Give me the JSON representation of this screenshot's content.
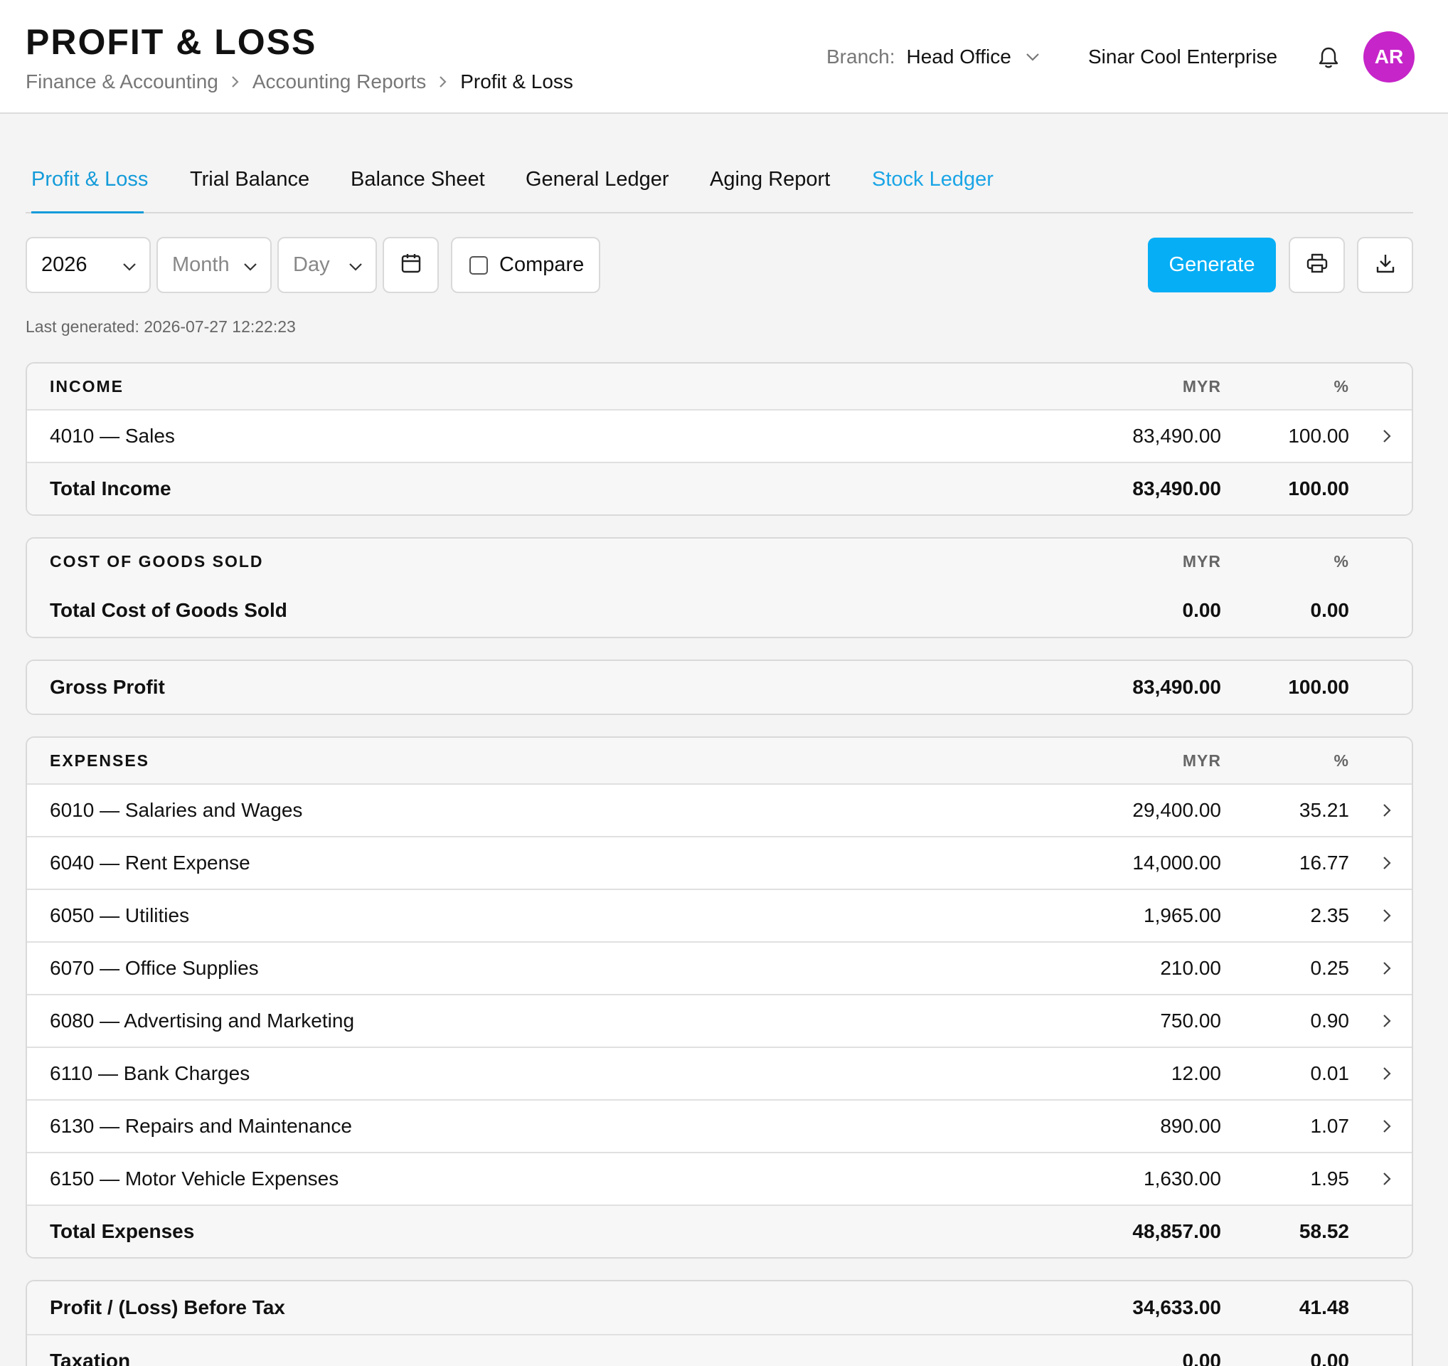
{
  "header": {
    "title": "PROFIT & LOSS",
    "breadcrumb": [
      "Finance & Accounting",
      "Accounting Reports",
      "Profit & Loss"
    ],
    "branch_label": "Branch:",
    "branch_value": "Head Office",
    "company": "Sinar Cool Enterprise",
    "avatar_initials": "AR"
  },
  "tabs": [
    {
      "label": "Profit & Loss",
      "state": "active"
    },
    {
      "label": "Trial Balance",
      "state": "normal"
    },
    {
      "label": "Balance Sheet",
      "state": "normal"
    },
    {
      "label": "General Ledger",
      "state": "normal"
    },
    {
      "label": "Aging Report",
      "state": "normal"
    },
    {
      "label": "Stock Ledger",
      "state": "link"
    }
  ],
  "toolbar": {
    "year": "2026",
    "month_placeholder": "Month",
    "day_placeholder": "Day",
    "compare_label": "Compare",
    "compare_checked": false,
    "generate_label": "Generate"
  },
  "last_generated": "Last generated: 2026-07-27 12:22:23",
  "columns": {
    "amount": "MYR",
    "percent": "%"
  },
  "income": {
    "heading": "INCOME",
    "rows": [
      {
        "label": "4010 — Sales",
        "amount": "83,490.00",
        "pct": "100.00"
      }
    ],
    "total": {
      "label": "Total Income",
      "amount": "83,490.00",
      "pct": "100.00"
    }
  },
  "cogs": {
    "heading": "COST OF GOODS SOLD",
    "total": {
      "label": "Total Cost of Goods Sold",
      "amount": "0.00",
      "pct": "0.00"
    }
  },
  "gross_profit": {
    "label": "Gross Profit",
    "amount": "83,490.00",
    "pct": "100.00"
  },
  "expenses": {
    "heading": "EXPENSES",
    "rows": [
      {
        "label": "6010 — Salaries and Wages",
        "amount": "29,400.00",
        "pct": "35.21"
      },
      {
        "label": "6040 — Rent Expense",
        "amount": "14,000.00",
        "pct": "16.77"
      },
      {
        "label": "6050 — Utilities",
        "amount": "1,965.00",
        "pct": "2.35"
      },
      {
        "label": "6070 — Office Supplies",
        "amount": "210.00",
        "pct": "0.25"
      },
      {
        "label": "6080 — Advertising and Marketing",
        "amount": "750.00",
        "pct": "0.90"
      },
      {
        "label": "6110 — Bank Charges",
        "amount": "12.00",
        "pct": "0.01"
      },
      {
        "label": "6130 — Repairs and Maintenance",
        "amount": "890.00",
        "pct": "1.07"
      },
      {
        "label": "6150 — Motor Vehicle Expenses",
        "amount": "1,630.00",
        "pct": "1.95"
      }
    ],
    "total": {
      "label": "Total Expenses",
      "amount": "48,857.00",
      "pct": "58.52"
    }
  },
  "profit_before_tax": {
    "label": "Profit / (Loss) Before Tax",
    "amount": "34,633.00",
    "pct": "41.48"
  },
  "taxation": {
    "label": "Taxation",
    "amount": "0.00",
    "pct": "0.00"
  },
  "colors": {
    "accent": "#06aef5",
    "tab_active": "#139bd9",
    "avatar": "#c625c9"
  }
}
